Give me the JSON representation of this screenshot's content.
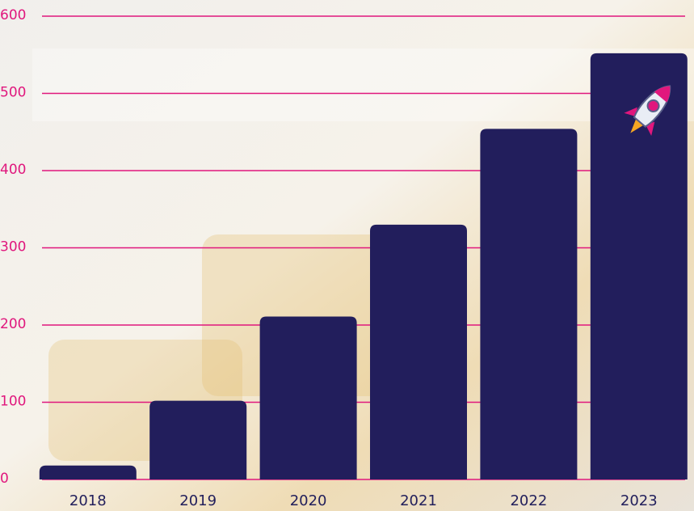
{
  "chart_data": {
    "type": "bar",
    "categories": [
      "2018",
      "2019",
      "2020",
      "2021",
      "2022",
      "2023"
    ],
    "values": [
      18,
      102,
      211,
      330,
      454,
      552
    ],
    "color": "#221e5c",
    "ylim": [
      0,
      600
    ],
    "yticks": [
      0,
      100,
      200,
      300,
      400,
      500,
      600
    ],
    "grid": true,
    "grid_color": "#e0177d"
  }
}
